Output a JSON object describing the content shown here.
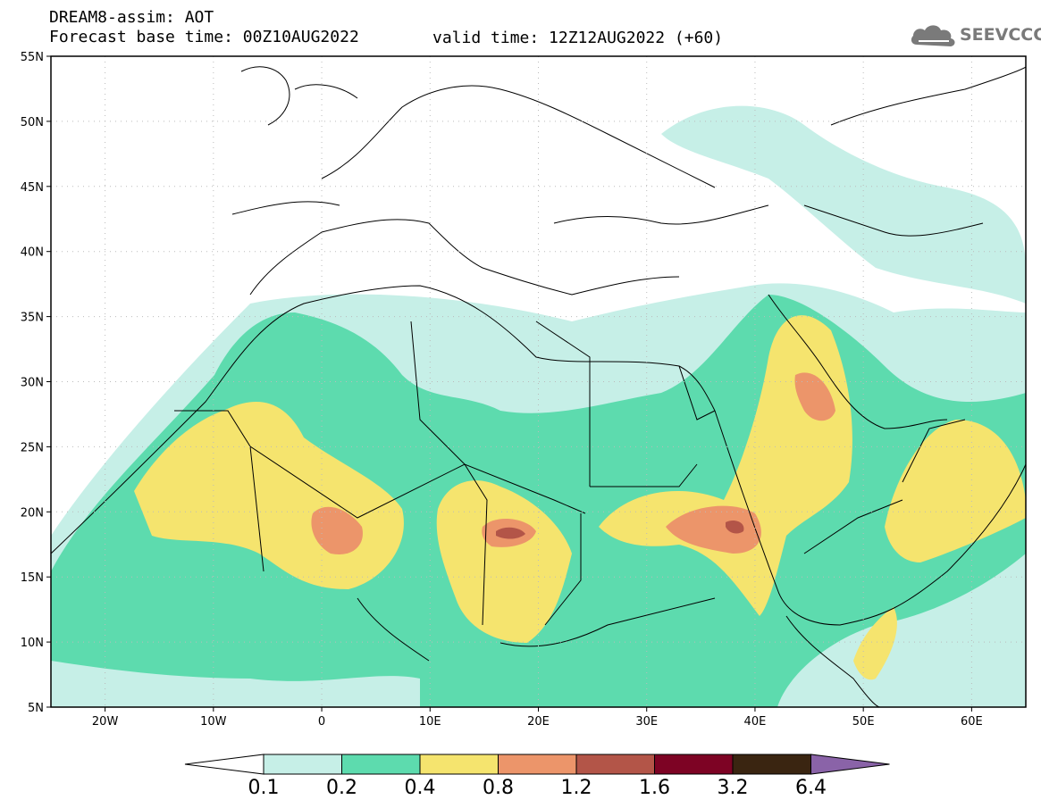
{
  "header": {
    "line1": "DREAM8-assim: AOT",
    "base_time": "Forecast base time: 00Z10AUG2022",
    "valid_time": "valid time: 12Z12AUG2022 (+60)",
    "logo_text": "SEEVCCC",
    "logo_icon": "cloud-icon"
  },
  "map": {
    "latitude_labels": [
      "55N",
      "50N",
      "45N",
      "40N",
      "35N",
      "30N",
      "25N",
      "20N",
      "15N",
      "10N",
      "5N"
    ],
    "longitude_labels": [
      "20W",
      "10W",
      "0",
      "10E",
      "20E",
      "30E",
      "40E",
      "50E",
      "60E"
    ],
    "lat_values": [
      55,
      50,
      45,
      40,
      35,
      30,
      25,
      20,
      15,
      10,
      5
    ],
    "lon_values": [
      -20,
      -10,
      0,
      10,
      20,
      30,
      40,
      50,
      60
    ],
    "extent": {
      "lon_min": -25,
      "lon_max": 65,
      "lat_min": 5,
      "lat_max": 55
    },
    "grid": "dotted"
  },
  "colorbar": {
    "labels": [
      "0.1",
      "0.2",
      "0.4",
      "0.8",
      "1.2",
      "1.6",
      "3.2",
      "6.4"
    ],
    "colors": [
      "#ffffff",
      "#c6efe7",
      "#5ddbae",
      "#f5e46e",
      "#ec956a",
      "#b35548",
      "#7d0324",
      "#3a2511",
      "#8a63a8"
    ]
  },
  "colors": {
    "aot_0_1": "#c6efe7",
    "aot_0_2": "#5ddbae",
    "aot_0_4": "#f5e46e",
    "aot_0_8": "#ec956a",
    "aot_1_2": "#b35548",
    "coast": "#000000"
  }
}
